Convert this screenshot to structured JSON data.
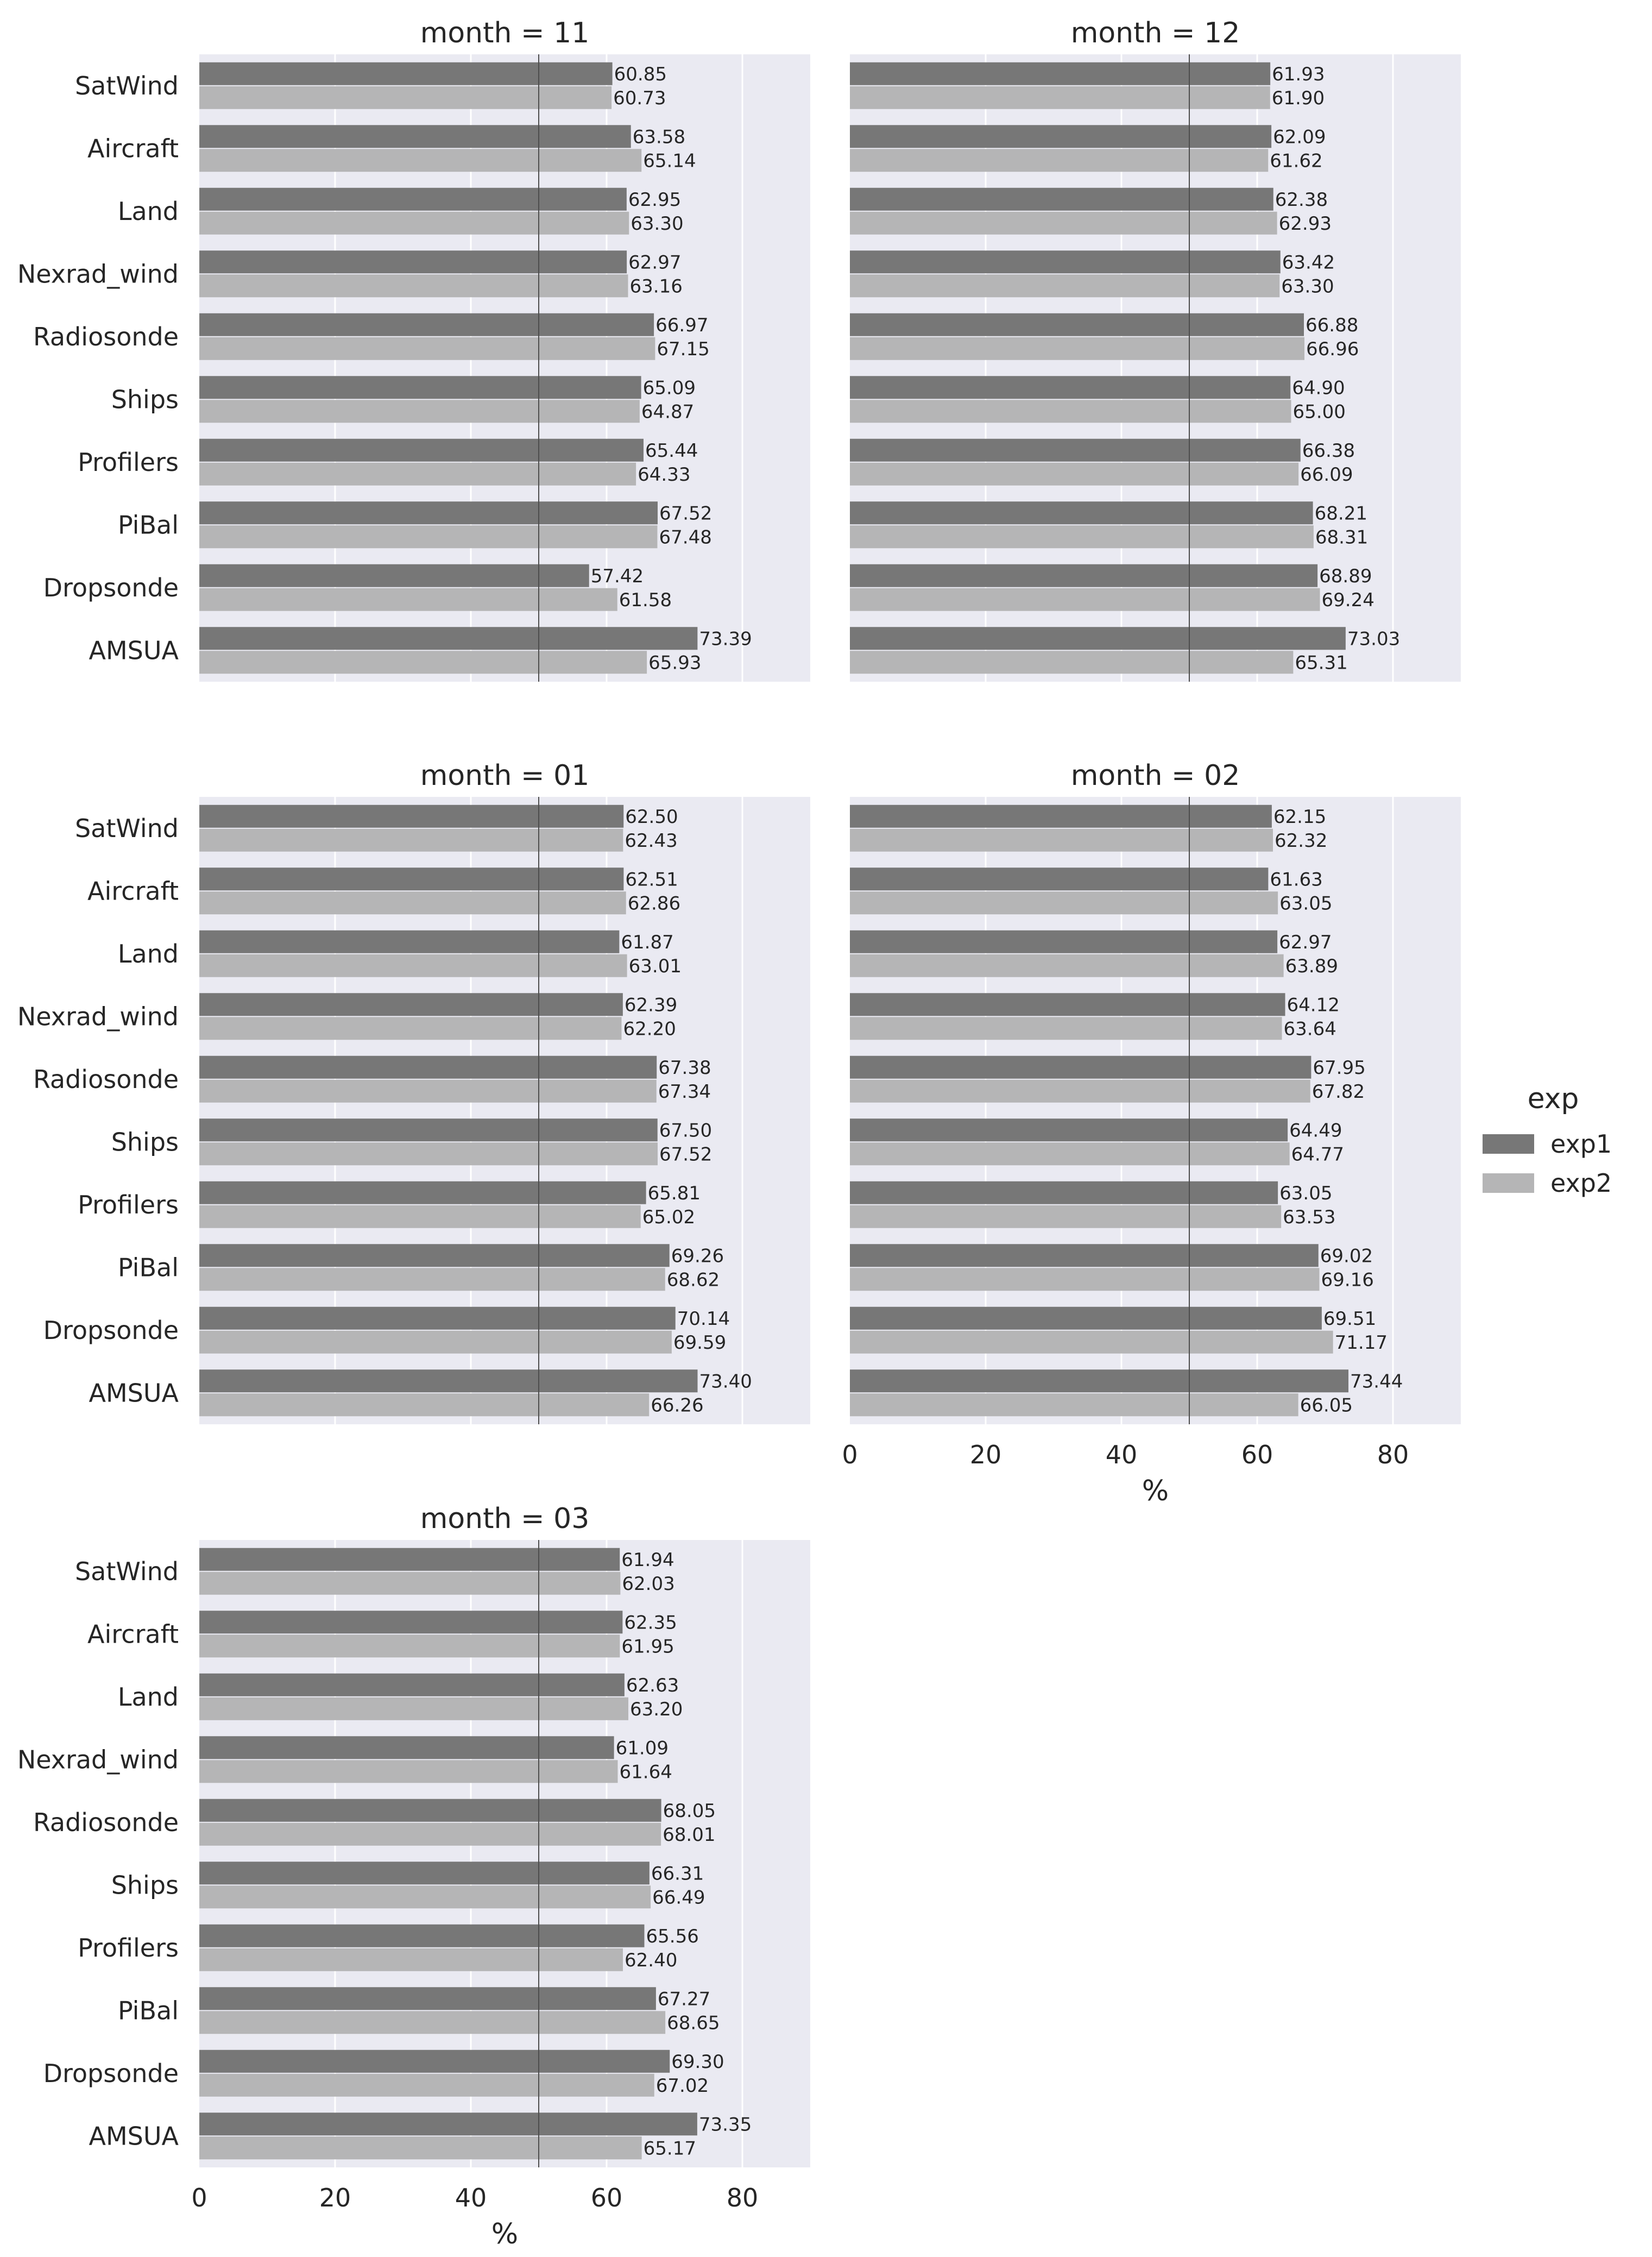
{
  "chart_data": {
    "type": "bar",
    "orientation": "horizontal",
    "xlabel": "%",
    "xlim": [
      0,
      90
    ],
    "xticks": [
      0,
      20,
      40,
      60,
      80
    ],
    "reference_line": 50,
    "grid": true,
    "legend": {
      "title": "exp",
      "placement": "right",
      "entries": [
        "exp1",
        "exp2"
      ]
    },
    "colors": {
      "exp1": "#777777",
      "exp2": "#b5b5b6",
      "panel_bg": "#eaeaf2",
      "grid": "#ffffff",
      "refline": "#4d4d4d"
    },
    "categories": [
      "SatWind",
      "Aircraft",
      "Land",
      "Nexrad_wind",
      "Radiosonde",
      "Ships",
      "Profilers",
      "PiBal",
      "Dropsonde",
      "AMSUA"
    ],
    "facets": [
      {
        "title": "month = 11",
        "series": [
          {
            "name": "exp1",
            "values": [
              60.85,
              63.58,
              62.95,
              62.97,
              66.97,
              65.09,
              65.44,
              67.52,
              57.42,
              73.39
            ],
            "labels": [
              "60.85",
              "63.58",
              "62.95",
              "62.97",
              "66.97",
              "65.09",
              "65.44",
              "67.52",
              "57.42",
              "73.39"
            ]
          },
          {
            "name": "exp2",
            "values": [
              60.73,
              65.14,
              63.3,
              63.16,
              67.15,
              64.87,
              64.33,
              67.48,
              61.58,
              65.93
            ],
            "labels": [
              "60.73",
              "65.14",
              "63.30",
              "63.16",
              "67.15",
              "64.87",
              "64.33",
              "67.48",
              "61.58",
              "65.93"
            ]
          }
        ]
      },
      {
        "title": "month = 12",
        "series": [
          {
            "name": "exp1",
            "values": [
              61.93,
              62.09,
              62.38,
              63.42,
              66.88,
              64.9,
              66.38,
              68.21,
              68.89,
              73.03
            ],
            "labels": [
              "61.93",
              "62.09",
              "62.38",
              "63.42",
              "66.88",
              "64.90",
              "66.38",
              "68.21",
              "68.89",
              "73.03"
            ]
          },
          {
            "name": "exp2",
            "values": [
              61.9,
              61.62,
              62.93,
              63.3,
              66.96,
              65.0,
              66.09,
              68.31,
              69.24,
              65.31
            ],
            "labels": [
              "61.90",
              "61.62",
              "62.93",
              "63.30",
              "66.96",
              "65.00",
              "66.09",
              "68.31",
              "69.24",
              "65.31"
            ]
          }
        ]
      },
      {
        "title": "month = 01",
        "series": [
          {
            "name": "exp1",
            "values": [
              62.5,
              62.51,
              61.87,
              62.39,
              67.38,
              67.5,
              65.81,
              69.26,
              70.14,
              73.4
            ],
            "labels": [
              "62.50",
              "62.51",
              "61.87",
              "62.39",
              "67.38",
              "67.50",
              "65.81",
              "69.26",
              "70.14",
              "73.40"
            ]
          },
          {
            "name": "exp2",
            "values": [
              62.43,
              62.86,
              63.01,
              62.2,
              67.34,
              67.52,
              65.02,
              68.62,
              69.59,
              66.26
            ],
            "labels": [
              "62.43",
              "62.86",
              "63.01",
              "62.20",
              "67.34",
              "67.52",
              "65.02",
              "68.62",
              "69.59",
              "66.26"
            ]
          }
        ]
      },
      {
        "title": "month = 02",
        "series": [
          {
            "name": "exp1",
            "values": [
              62.15,
              61.63,
              62.97,
              64.12,
              67.95,
              64.49,
              63.05,
              69.02,
              69.51,
              73.44
            ],
            "labels": [
              "62.15",
              "61.63",
              "62.97",
              "64.12",
              "67.95",
              "64.49",
              "63.05",
              "69.02",
              "69.51",
              "73.44"
            ]
          },
          {
            "name": "exp2",
            "values": [
              62.32,
              63.05,
              63.89,
              63.64,
              67.82,
              64.77,
              63.53,
              69.16,
              71.17,
              66.05
            ],
            "labels": [
              "62.32",
              "63.05",
              "63.89",
              "63.64",
              "67.82",
              "64.77",
              "63.53",
              "69.16",
              "71.17",
              "66.05"
            ]
          }
        ]
      },
      {
        "title": "month = 03",
        "series": [
          {
            "name": "exp1",
            "values": [
              61.94,
              62.35,
              62.63,
              61.09,
              68.05,
              66.31,
              65.56,
              67.27,
              69.3,
              73.35
            ],
            "labels": [
              "61.94",
              "62.35",
              "62.63",
              "61.09",
              "68.05",
              "66.31",
              "65.56",
              "67.27",
              "69.30",
              "73.35"
            ]
          },
          {
            "name": "exp2",
            "values": [
              62.03,
              61.95,
              63.2,
              61.64,
              68.01,
              66.49,
              62.4,
              68.65,
              67.02,
              65.17
            ],
            "labels": [
              "62.03",
              "61.95",
              "63.20",
              "61.64",
              "68.01",
              "66.49",
              "62.40",
              "68.65",
              "67.02",
              "65.17"
            ]
          }
        ]
      }
    ]
  }
}
